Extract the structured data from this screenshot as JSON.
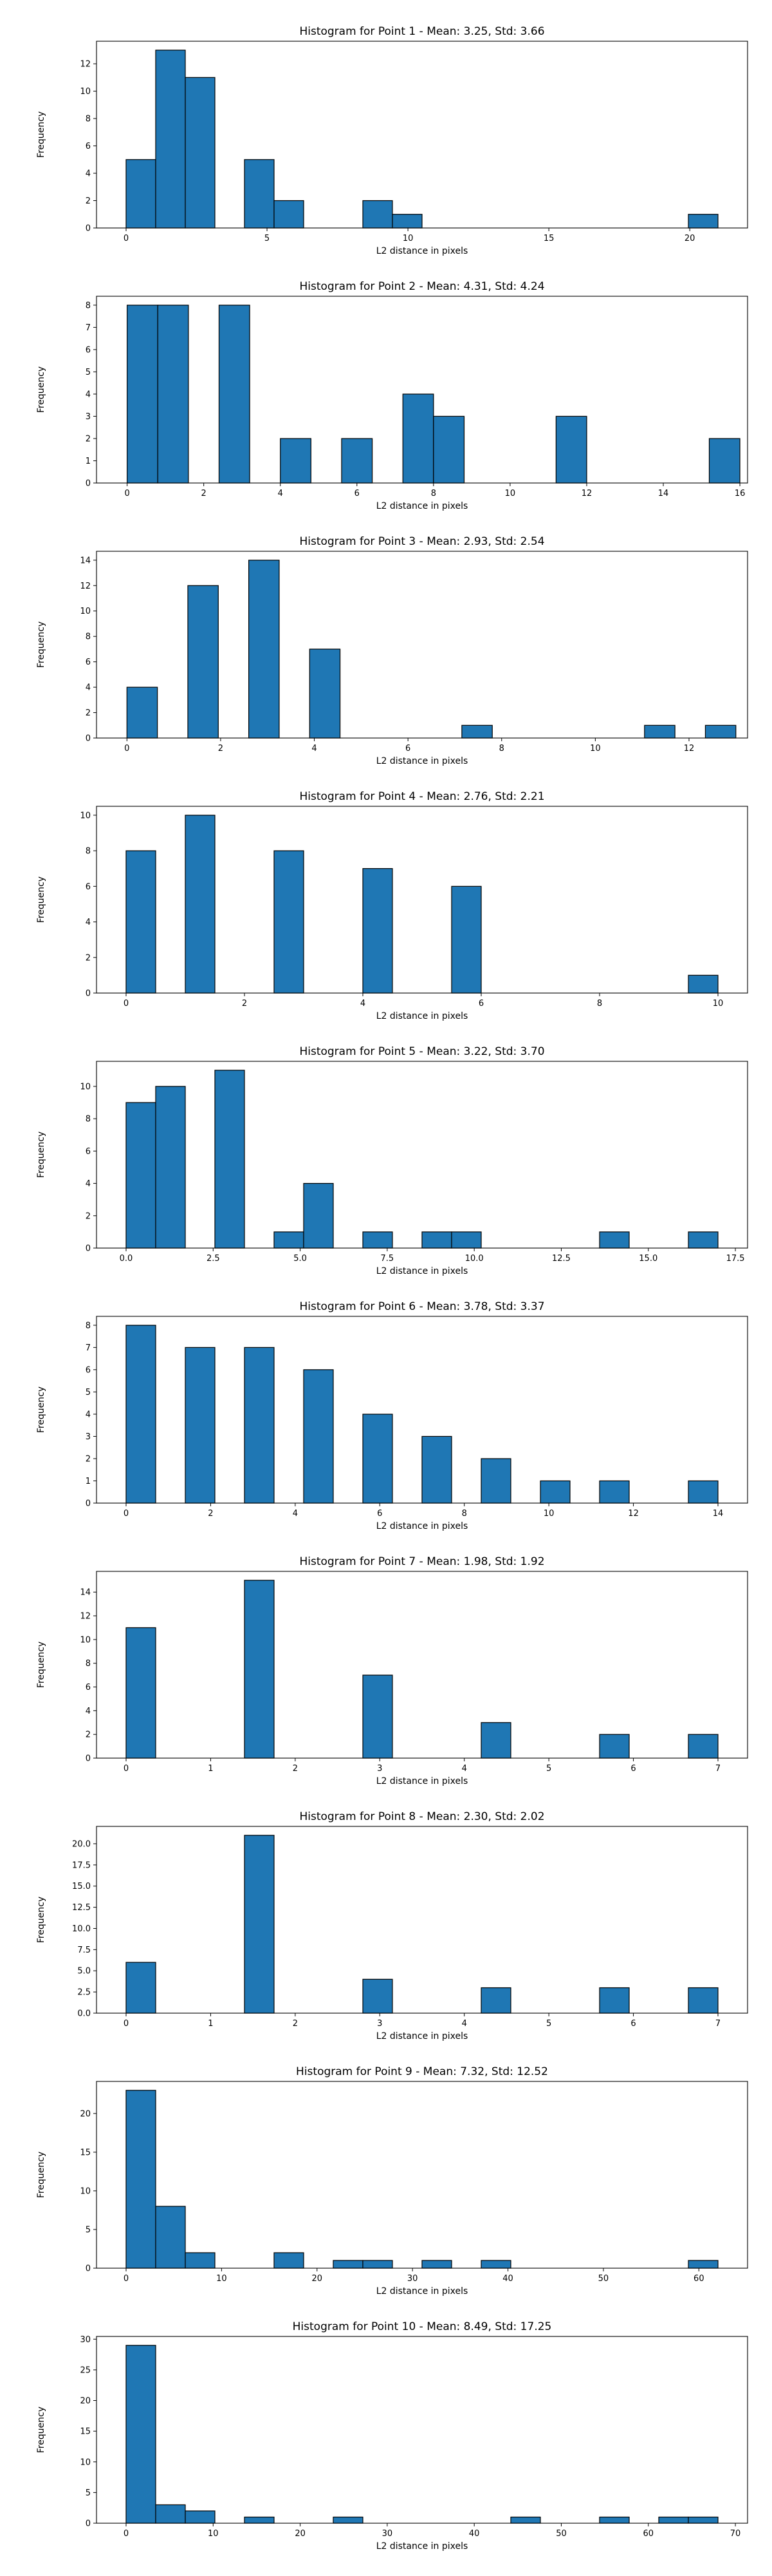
{
  "chart_data": [
    {
      "type": "bar",
      "title": "Histogram for Point 1 - Mean: 3.25, Std: 3.66",
      "xlabel": "L2 distance in pixels",
      "ylabel": "Frequency",
      "xlim": [
        -1.05,
        22.05
      ],
      "ylim": [
        0,
        13.65
      ],
      "xticks": [
        0,
        5,
        10,
        15,
        20
      ],
      "yticks": [
        0,
        2,
        4,
        6,
        8,
        10,
        12
      ],
      "bins": [
        [
          0,
          1.05,
          5
        ],
        [
          1.05,
          2.1,
          13
        ],
        [
          2.1,
          3.15,
          11
        ],
        [
          4.2,
          5.25,
          5
        ],
        [
          5.25,
          6.3,
          2
        ],
        [
          8.4,
          9.45,
          2
        ],
        [
          9.45,
          10.5,
          1
        ],
        [
          19.95,
          21,
          1
        ]
      ]
    },
    {
      "type": "bar",
      "title": "Histogram for Point 2 - Mean: 4.31, Std: 4.24",
      "xlabel": "L2 distance in pixels",
      "ylabel": "Frequency",
      "xlim": [
        -0.8,
        16.2
      ],
      "ylim": [
        0,
        8.4
      ],
      "xticks": [
        0,
        2,
        4,
        6,
        8,
        10,
        12,
        14,
        16
      ],
      "yticks": [
        0,
        1,
        2,
        3,
        4,
        5,
        6,
        7,
        8
      ],
      "bins": [
        [
          0,
          0.8,
          8
        ],
        [
          0.8,
          1.6,
          8
        ],
        [
          2.4,
          3.2,
          8
        ],
        [
          4,
          4.8,
          2
        ],
        [
          5.6,
          6.4,
          2
        ],
        [
          7.2,
          8,
          4
        ],
        [
          8,
          8.8,
          3
        ],
        [
          11.2,
          12,
          3
        ],
        [
          15.2,
          16,
          2
        ]
      ]
    },
    {
      "type": "bar",
      "title": "Histogram for Point 3 - Mean: 2.93, Std: 2.54",
      "xlabel": "L2 distance in pixels",
      "ylabel": "Frequency",
      "xlim": [
        -0.65,
        13.25
      ],
      "ylim": [
        0,
        14.7
      ],
      "xticks": [
        0,
        2,
        4,
        6,
        8,
        10,
        12
      ],
      "yticks": [
        0,
        2,
        4,
        6,
        8,
        10,
        12,
        14
      ],
      "bins": [
        [
          0,
          0.65,
          4
        ],
        [
          1.3,
          1.95,
          12
        ],
        [
          2.6,
          3.25,
          14
        ],
        [
          3.9,
          4.55,
          7
        ],
        [
          7.15,
          7.8,
          1
        ],
        [
          11.05,
          11.7,
          1
        ],
        [
          12.35,
          13,
          1
        ]
      ]
    },
    {
      "type": "bar",
      "title": "Histogram for Point 4 - Mean: 2.76, Std: 2.21",
      "xlabel": "L2 distance in pixels",
      "ylabel": "Frequency",
      "xlim": [
        -0.5,
        10.5
      ],
      "ylim": [
        0,
        10.5
      ],
      "xticks": [
        0,
        2,
        4,
        6,
        8,
        10
      ],
      "yticks": [
        0,
        2,
        4,
        6,
        8,
        10
      ],
      "bins": [
        [
          0,
          0.5,
          8
        ],
        [
          1,
          1.5,
          10
        ],
        [
          2.5,
          3,
          8
        ],
        [
          4,
          4.5,
          7
        ],
        [
          5.5,
          6,
          6
        ],
        [
          9.5,
          10,
          1
        ]
      ]
    },
    {
      "type": "bar",
      "title": "Histogram for Point 5 - Mean: 3.22, Std: 3.70",
      "xlabel": "L2 distance in pixels",
      "ylabel": "Frequency",
      "xlim": [
        -0.85,
        17.85
      ],
      "ylim": [
        0,
        11.55
      ],
      "xticks": [
        0.0,
        2.5,
        5.0,
        7.5,
        10.0,
        12.5,
        15.0,
        17.5
      ],
      "yticks": [
        0,
        2,
        4,
        6,
        8,
        10
      ],
      "tick_format": "fixed1",
      "bins": [
        [
          0,
          0.85,
          9
        ],
        [
          0.85,
          1.7,
          10
        ],
        [
          2.55,
          3.4,
          11
        ],
        [
          4.25,
          5.1,
          1
        ],
        [
          5.1,
          5.95,
          4
        ],
        [
          6.8,
          7.65,
          1
        ],
        [
          8.5,
          9.35,
          1
        ],
        [
          9.35,
          10.2,
          1
        ],
        [
          13.6,
          14.45,
          1
        ],
        [
          16.15,
          17,
          1
        ]
      ]
    },
    {
      "type": "bar",
      "title": "Histogram for Point 6 - Mean: 3.78, Std: 3.37",
      "xlabel": "L2 distance in pixels",
      "ylabel": "Frequency",
      "xlim": [
        -0.7,
        14.7
      ],
      "ylim": [
        0,
        8.4
      ],
      "xticks": [
        0,
        2,
        4,
        6,
        8,
        10,
        12,
        14
      ],
      "yticks": [
        0,
        1,
        2,
        3,
        4,
        5,
        6,
        7,
        8
      ],
      "bins": [
        [
          0,
          0.7,
          8
        ],
        [
          1.4,
          2.1,
          7
        ],
        [
          2.8,
          3.5,
          7
        ],
        [
          4.2,
          4.9,
          6
        ],
        [
          5.6,
          6.3,
          4
        ],
        [
          7,
          7.7,
          3
        ],
        [
          8.4,
          9.1,
          2
        ],
        [
          9.8,
          10.5,
          1
        ],
        [
          11.2,
          11.9,
          1
        ],
        [
          12.6,
          13.3,
          0
        ],
        [
          13.3,
          14,
          1
        ]
      ]
    },
    {
      "type": "bar",
      "title": "Histogram for Point 7 - Mean: 1.98, Std: 1.92",
      "xlabel": "L2 distance in pixels",
      "ylabel": "Frequency",
      "xlim": [
        -0.35,
        7.35
      ],
      "ylim": [
        0,
        15.75
      ],
      "xticks": [
        0,
        1,
        2,
        3,
        4,
        5,
        6,
        7
      ],
      "yticks": [
        0,
        2,
        4,
        6,
        8,
        10,
        12,
        14
      ],
      "bins": [
        [
          0,
          0.35,
          11
        ],
        [
          1.4,
          1.75,
          15
        ],
        [
          2.8,
          3.15,
          7
        ],
        [
          4.2,
          4.55,
          3
        ],
        [
          5.6,
          5.95,
          2
        ],
        [
          6.65,
          7,
          2
        ]
      ]
    },
    {
      "type": "bar",
      "title": "Histogram for Point 8 - Mean: 2.30, Std: 2.02",
      "xlabel": "L2 distance in pixels",
      "ylabel": "Frequency",
      "xlim": [
        -0.35,
        7.35
      ],
      "ylim": [
        0,
        22.05
      ],
      "xticks": [
        0,
        1,
        2,
        3,
        4,
        5,
        6,
        7
      ],
      "yticks": [
        0.0,
        2.5,
        5.0,
        7.5,
        10.0,
        12.5,
        15.0,
        17.5,
        20.0
      ],
      "tick_format_y": "fixed1",
      "bins": [
        [
          0,
          0.35,
          6
        ],
        [
          1.4,
          1.75,
          21
        ],
        [
          2.8,
          3.15,
          4
        ],
        [
          4.2,
          4.55,
          3
        ],
        [
          5.6,
          5.95,
          3
        ],
        [
          6.65,
          7,
          3
        ]
      ]
    },
    {
      "type": "bar",
      "title": "Histogram for Point 9 - Mean: 7.32, Std: 12.52",
      "xlabel": "L2 distance in pixels",
      "ylabel": "Frequency",
      "xlim": [
        -3.1,
        65.1
      ],
      "ylim": [
        0,
        24.15
      ],
      "xticks": [
        0,
        10,
        20,
        30,
        40,
        50,
        60
      ],
      "yticks": [
        0,
        5,
        10,
        15,
        20
      ],
      "bins": [
        [
          0,
          3.1,
          23
        ],
        [
          3.1,
          6.2,
          8
        ],
        [
          6.2,
          9.3,
          2
        ],
        [
          15.5,
          18.6,
          2
        ],
        [
          21.7,
          24.8,
          1
        ],
        [
          24.8,
          27.9,
          1
        ],
        [
          31,
          34.1,
          1
        ],
        [
          37.2,
          40.3,
          1
        ],
        [
          58.9,
          62,
          1
        ]
      ]
    },
    {
      "type": "bar",
      "title": "Histogram for Point 10 - Mean: 8.49, Std: 17.25",
      "xlabel": "L2 distance in pixels",
      "ylabel": "Frequency",
      "xlim": [
        -3.4,
        71.4
      ],
      "ylim": [
        0,
        30.45
      ],
      "xticks": [
        0,
        10,
        20,
        30,
        40,
        50,
        60,
        70
      ],
      "yticks": [
        0,
        5,
        10,
        15,
        20,
        25,
        30
      ],
      "bins": [
        [
          0,
          3.4,
          29
        ],
        [
          3.4,
          6.8,
          3
        ],
        [
          6.8,
          10.2,
          2
        ],
        [
          13.6,
          17,
          1
        ],
        [
          23.8,
          27.2,
          1
        ],
        [
          44.2,
          47.6,
          1
        ],
        [
          54.4,
          57.8,
          1
        ],
        [
          61.2,
          64.6,
          1
        ],
        [
          64.6,
          68,
          1
        ]
      ]
    }
  ],
  "style": {
    "bar_fill": "#1f77b4",
    "bar_edge": "#000000",
    "grid": false,
    "legend": "none"
  }
}
